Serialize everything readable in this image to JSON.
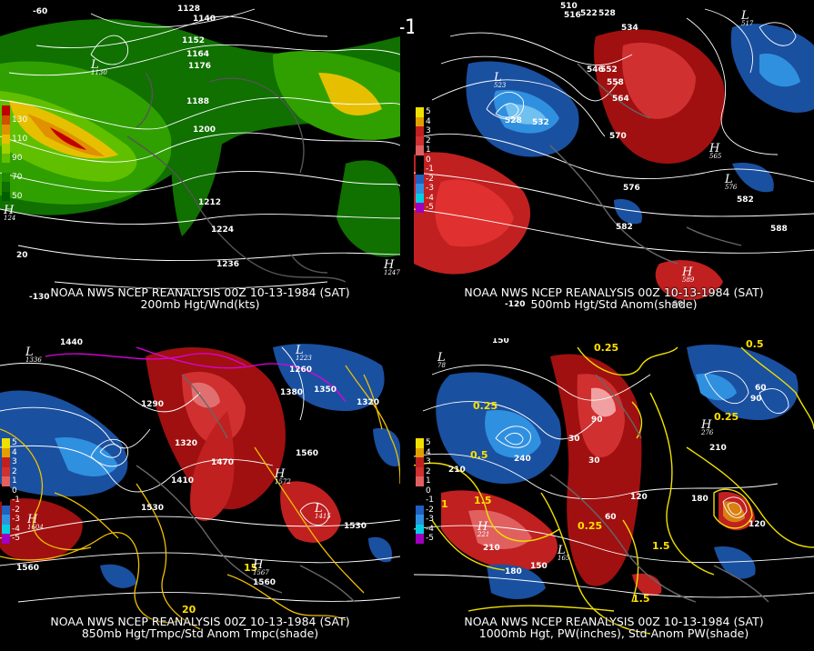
{
  "title": "00Z 10-13-1984 (SAT)",
  "panels": [
    {
      "id": "tl",
      "source": "NOAA NWS NCEP REANALYSIS 00Z 10-13-1984 (SAT)",
      "product": "200mb Hgt/Wnd(kts)",
      "legend": [
        {
          "label": "",
          "color": "#c00000"
        },
        {
          "label": "130",
          "color": "#d05000"
        },
        {
          "label": "",
          "color": "#e09000"
        },
        {
          "label": "110",
          "color": "#e6c000"
        },
        {
          "label": "",
          "color": "#a0d000"
        },
        {
          "label": "90",
          "color": "#60c000"
        },
        {
          "label": "",
          "color": "#30a000"
        },
        {
          "label": "70",
          "color": "#208a00"
        },
        {
          "label": "",
          "color": "#107000"
        },
        {
          "label": "50",
          "color": "#006000"
        }
      ],
      "contour_labels": [
        "1128",
        "1140",
        "1152",
        "1164",
        "1176",
        "1188",
        "1200",
        "1212",
        "1224",
        "1236",
        "1247",
        "1130"
      ],
      "lon_labels": [
        "-60",
        "-130",
        "20"
      ],
      "pressure_centers": [
        {
          "type": "L",
          "value": "1130"
        },
        {
          "type": "H",
          "value": "1247"
        },
        {
          "type": "H",
          "value": "124"
        }
      ]
    },
    {
      "id": "tr",
      "source": "NOAA NWS NCEP REANALYSIS 00Z 10-13-1984 (SAT)",
      "product": "500mb Hgt/Std Anom(shade)",
      "legend": [
        {
          "label": "5",
          "color": "#f0e000"
        },
        {
          "label": "4",
          "color": "#e0a000"
        },
        {
          "label": "3",
          "color": "#c02020"
        },
        {
          "label": "2",
          "color": "#d03030"
        },
        {
          "label": "1",
          "color": "#e06060"
        },
        {
          "label": "0",
          "color": "#000000"
        },
        {
          "label": "-1",
          "color": "#000000"
        },
        {
          "label": "-2",
          "color": "#2060c0"
        },
        {
          "label": "-3",
          "color": "#3090e0"
        },
        {
          "label": "-4",
          "color": "#00d0e0"
        },
        {
          "label": "-5",
          "color": "#a000c0"
        }
      ],
      "contour_labels": [
        "510",
        "516",
        "522",
        "528",
        "534",
        "546",
        "552",
        "558",
        "564",
        "570",
        "576",
        "582",
        "588",
        "523",
        "532",
        "517",
        "565",
        "576"
      ],
      "lon_labels": [
        "-120",
        "-60"
      ],
      "pressure_centers": [
        {
          "type": "L",
          "value": "523"
        },
        {
          "type": "L",
          "value": "517"
        },
        {
          "type": "H",
          "value": "565"
        },
        {
          "type": "H",
          "value": "589"
        },
        {
          "type": "L",
          "value": "576"
        }
      ]
    },
    {
      "id": "bl",
      "source": "NOAA NWS NCEP REANALYSIS 00Z 10-13-1984 (SAT)",
      "product": "850mb Hgt/Tmpc/Std Anom Tmpc(shade)",
      "legend": [
        {
          "label": "5",
          "color": "#f0e000"
        },
        {
          "label": "4",
          "color": "#e0a000"
        },
        {
          "label": "3",
          "color": "#c02020"
        },
        {
          "label": "2",
          "color": "#d03030"
        },
        {
          "label": "1",
          "color": "#e06060"
        },
        {
          "label": "0",
          "color": "#000000"
        },
        {
          "label": "-1",
          "color": "#000000"
        },
        {
          "label": "-2",
          "color": "#2060c0"
        },
        {
          "label": "-3",
          "color": "#3090e0"
        },
        {
          "label": "-4",
          "color": "#00d0e0"
        },
        {
          "label": "-5",
          "color": "#a000c0"
        }
      ],
      "contour_labels": [
        "1440",
        "1290",
        "1320",
        "1350",
        "1410",
        "1470",
        "1530",
        "1560",
        "1380",
        "1260",
        "1420",
        "1604",
        "1572",
        "1567",
        "1560",
        "1415",
        "1530"
      ],
      "temp_labels": [
        "15",
        "20"
      ],
      "pressure_centers": [
        {
          "type": "L",
          "value": "1336"
        },
        {
          "type": "H",
          "value": "1604"
        },
        {
          "type": "H",
          "value": "1572"
        },
        {
          "type": "H",
          "value": "1567"
        },
        {
          "type": "L",
          "value": "1415"
        },
        {
          "type": "L",
          "value": "1223"
        }
      ]
    },
    {
      "id": "br",
      "source": "NOAA NWS NCEP REANALYSIS 00Z 10-13-1984 (SAT)",
      "product": "1000mb Hgt, PW(inches), Std Anom PW(shade)",
      "legend": [
        {
          "label": "5",
          "color": "#f0e000"
        },
        {
          "label": "4",
          "color": "#e0a000"
        },
        {
          "label": "3",
          "color": "#c02020"
        },
        {
          "label": "2",
          "color": "#d03030"
        },
        {
          "label": "1",
          "color": "#e06060"
        },
        {
          "label": "0",
          "color": "#000000"
        },
        {
          "label": "-1",
          "color": "#000000"
        },
        {
          "label": "-2",
          "color": "#2060c0"
        },
        {
          "label": "-3",
          "color": "#3090e0"
        },
        {
          "label": "-4",
          "color": "#00d0e0"
        },
        {
          "label": "-5",
          "color": "#a000c0"
        }
      ],
      "contour_labels": [
        "150",
        "210",
        "240",
        "90",
        "60",
        "30",
        "120",
        "180",
        "60",
        "90",
        "30",
        "210",
        "180",
        "150",
        "120"
      ],
      "pw_labels": [
        "0.25",
        "0.5",
        "1",
        "1.5",
        "0.5",
        "0.25",
        "1.5",
        "1"
      ],
      "pressure_centers": [
        {
          "type": "L",
          "value": "78"
        },
        {
          "type": "H",
          "value": "221"
        },
        {
          "type": "L",
          "value": "165"
        },
        {
          "type": "H",
          "value": "276"
        }
      ]
    }
  ]
}
